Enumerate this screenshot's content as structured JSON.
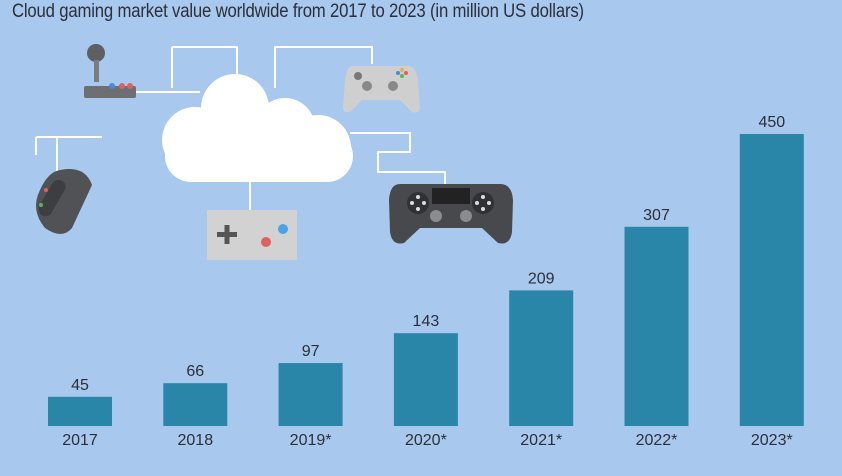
{
  "chart_data": {
    "type": "bar",
    "title": "Cloud gaming market value worldwide from 2017 to 2023 (in million US dollars)",
    "categories": [
      "2017",
      "2018",
      "2019*",
      "2020*",
      "2021*",
      "2022*",
      "2023*"
    ],
    "values": [
      45,
      66,
      97,
      143,
      209,
      307,
      450
    ],
    "xlabel": "",
    "ylabel": "",
    "ylim": [
      0,
      450
    ],
    "grid": false,
    "data_labels": true,
    "bar_color": "#2a86a8",
    "background_color": "#a8c8ee",
    "illustration": [
      "cloud-icon",
      "joystick-icon",
      "xbox-controller-icon",
      "gaming-mouse-icon",
      "retro-gamepad-icon",
      "playstation-controller-icon"
    ]
  }
}
